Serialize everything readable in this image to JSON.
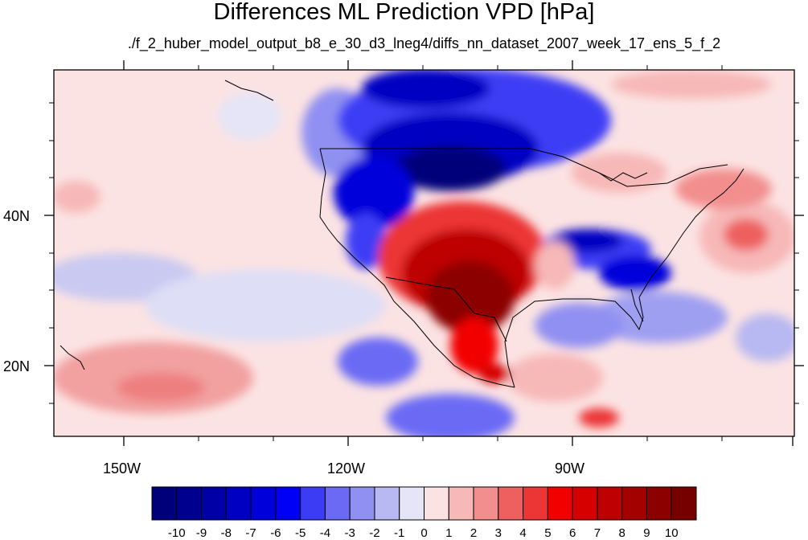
{
  "title": "Differences ML Prediction VPD [hPa]",
  "subtitle": "./f_2_huber_model_output_b8_e_30_d3_lneg4/diffs_nn_dataset_2007_week_17_ens_5_f_2",
  "axes": {
    "lon_labels": [
      "150W",
      "120W",
      "90W"
    ],
    "lat_labels": [
      "40N",
      "20N"
    ]
  },
  "colorbar": {
    "labels": [
      "-10",
      "-9",
      "-8",
      "-7",
      "-6",
      "-5",
      "-4",
      "-3",
      "-2",
      "-1",
      "0",
      "1",
      "2",
      "3",
      "4",
      "5",
      "6",
      "7",
      "8",
      "9",
      "10"
    ],
    "colors": [
      "#00007a",
      "#00008f",
      "#0000a6",
      "#0000c2",
      "#0000db",
      "#0000f5",
      "#3c3cf5",
      "#6a6af5",
      "#9090f2",
      "#b8b8f2",
      "#e5e5f7",
      "#fce3e3",
      "#f7b8b8",
      "#f28e8e",
      "#ee6060",
      "#ec3535",
      "#f20000",
      "#d60000",
      "#bd0000",
      "#a30000",
      "#8c0000",
      "#760000"
    ]
  }
}
